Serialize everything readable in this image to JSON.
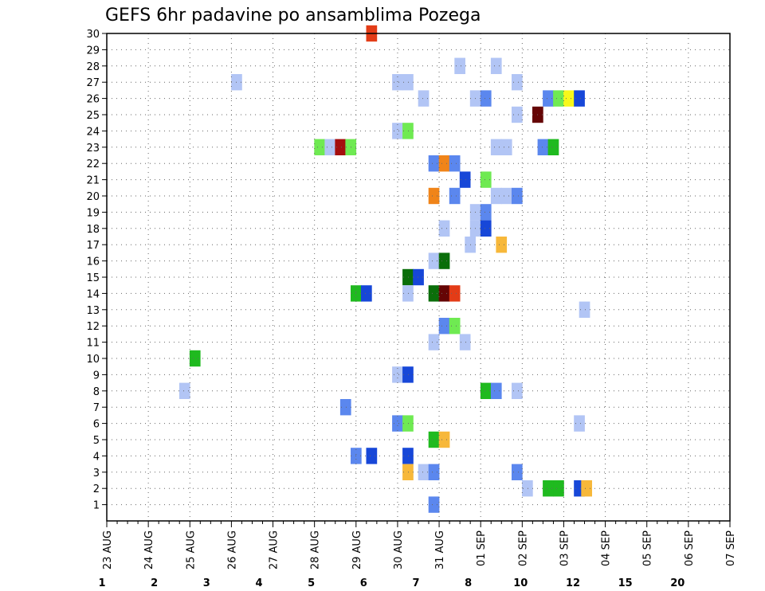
{
  "chart_data": {
    "type": "heatmap",
    "title": "GEFS 6hr padavine po ansamblima Pozega",
    "xlabel": "",
    "ylabel": "",
    "x_start": "23 AUG",
    "x_step": "6 hours",
    "x_ticks": [
      "23 AUG",
      "24 AUG",
      "25 AUG",
      "26 AUG",
      "27 AUG",
      "28 AUG",
      "29 AUG",
      "30 AUG",
      "31 AUG",
      "01 SEP",
      "02 SEP",
      "03 SEP",
      "04 SEP",
      "05 SEP",
      "06 SEP",
      "07 SEP"
    ],
    "y_ticks": [
      1,
      2,
      3,
      4,
      5,
      6,
      7,
      8,
      9,
      10,
      11,
      12,
      13,
      14,
      15,
      16,
      17,
      18,
      19,
      20,
      21,
      22,
      23,
      24,
      25,
      26,
      27,
      28,
      29,
      30
    ],
    "ylim": [
      0,
      30
    ],
    "grid": true,
    "legend": {
      "position": "bottom",
      "boundaries": [
        "1",
        "2",
        "3",
        "4",
        "5",
        "6",
        "7",
        "8",
        "10",
        "12",
        "15",
        "20"
      ],
      "colors": [
        "#b2c5f5",
        "#5b87ee",
        "#1747d8",
        "#6fea52",
        "#1fba1f",
        "#0a6e0a",
        "#f8f81a",
        "#f7b83a",
        "#f08419",
        "#e33c17",
        "#a50e0e",
        "#650505"
      ]
    },
    "cells": [
      {
        "t": 25.5,
        "m": 30,
        "c": 9
      },
      {
        "t": 34,
        "m": 28,
        "c": 0
      },
      {
        "t": 37.5,
        "m": 28,
        "c": 0
      },
      {
        "t": 12.5,
        "m": 27,
        "c": 0
      },
      {
        "t": 28,
        "m": 27,
        "c": 0
      },
      {
        "t": 29,
        "m": 27,
        "c": 0
      },
      {
        "t": 39.5,
        "m": 27,
        "c": 0
      },
      {
        "t": 30.5,
        "m": 26,
        "c": 0
      },
      {
        "t": 35.5,
        "m": 26,
        "c": 0
      },
      {
        "t": 36.5,
        "m": 26,
        "c": 1
      },
      {
        "t": 42.5,
        "m": 26,
        "c": 1
      },
      {
        "t": 43.5,
        "m": 26,
        "c": 3
      },
      {
        "t": 44.5,
        "m": 26,
        "c": 6
      },
      {
        "t": 45.5,
        "m": 26,
        "c": 2
      },
      {
        "t": 39.5,
        "m": 25,
        "c": 0
      },
      {
        "t": 41.5,
        "m": 25,
        "c": 11
      },
      {
        "t": 28,
        "m": 24,
        "c": 0
      },
      {
        "t": 29,
        "m": 24,
        "c": 3
      },
      {
        "t": 20.5,
        "m": 23,
        "c": 3
      },
      {
        "t": 21.5,
        "m": 23,
        "c": 0
      },
      {
        "t": 22.5,
        "m": 23,
        "c": 10
      },
      {
        "t": 23.5,
        "m": 23,
        "c": 3
      },
      {
        "t": 37.5,
        "m": 23,
        "c": 0
      },
      {
        "t": 38.5,
        "m": 23,
        "c": 0
      },
      {
        "t": 42,
        "m": 23,
        "c": 1
      },
      {
        "t": 43,
        "m": 23,
        "c": 4
      },
      {
        "t": 31.5,
        "m": 22,
        "c": 1
      },
      {
        "t": 32.5,
        "m": 22,
        "c": 8
      },
      {
        "t": 33.5,
        "m": 22,
        "c": 1
      },
      {
        "t": 34.5,
        "m": 21,
        "c": 2
      },
      {
        "t": 36.5,
        "m": 21,
        "c": 3
      },
      {
        "t": 31.5,
        "m": 20,
        "c": 8
      },
      {
        "t": 33.5,
        "m": 20,
        "c": 1
      },
      {
        "t": 37.5,
        "m": 20,
        "c": 0
      },
      {
        "t": 38.5,
        "m": 20,
        "c": 0
      },
      {
        "t": 39.5,
        "m": 20,
        "c": 1
      },
      {
        "t": 35.5,
        "m": 19,
        "c": 0
      },
      {
        "t": 36.5,
        "m": 19,
        "c": 1
      },
      {
        "t": 32.5,
        "m": 18,
        "c": 0
      },
      {
        "t": 35.5,
        "m": 18,
        "c": 0
      },
      {
        "t": 36.5,
        "m": 18,
        "c": 2
      },
      {
        "t": 35,
        "m": 17,
        "c": 0
      },
      {
        "t": 38,
        "m": 17,
        "c": 7
      },
      {
        "t": 31.5,
        "m": 16,
        "c": 0
      },
      {
        "t": 32.5,
        "m": 16,
        "c": 5
      },
      {
        "t": 29,
        "m": 15,
        "c": 5
      },
      {
        "t": 30,
        "m": 15,
        "c": 2
      },
      {
        "t": 29,
        "m": 14,
        "c": 0
      },
      {
        "t": 31.5,
        "m": 14,
        "c": 5
      },
      {
        "t": 32.5,
        "m": 14,
        "c": 11
      },
      {
        "t": 33.5,
        "m": 14,
        "c": 9
      },
      {
        "t": 24,
        "m": 14,
        "c": 4
      },
      {
        "t": 25,
        "m": 14,
        "c": 2
      },
      {
        "t": 46,
        "m": 13,
        "c": 0
      },
      {
        "t": 32.5,
        "m": 12,
        "c": 1
      },
      {
        "t": 33.5,
        "m": 12,
        "c": 3
      },
      {
        "t": 31.5,
        "m": 11,
        "c": 0
      },
      {
        "t": 34.5,
        "m": 11,
        "c": 0
      },
      {
        "t": 8.5,
        "m": 10,
        "c": 4
      },
      {
        "t": 28,
        "m": 9,
        "c": 0
      },
      {
        "t": 29,
        "m": 9,
        "c": 2
      },
      {
        "t": 7.5,
        "m": 8,
        "c": 0
      },
      {
        "t": 36.5,
        "m": 8,
        "c": 4
      },
      {
        "t": 37.5,
        "m": 8,
        "c": 1
      },
      {
        "t": 39.5,
        "m": 8,
        "c": 0
      },
      {
        "t": 23,
        "m": 7,
        "c": 1
      },
      {
        "t": 28,
        "m": 6,
        "c": 1
      },
      {
        "t": 29,
        "m": 6,
        "c": 3
      },
      {
        "t": 45.5,
        "m": 6,
        "c": 0
      },
      {
        "t": 31.5,
        "m": 5,
        "c": 4
      },
      {
        "t": 32.5,
        "m": 5,
        "c": 7
      },
      {
        "t": 29,
        "m": 4,
        "c": 2
      },
      {
        "t": 24,
        "m": 4,
        "c": 1
      },
      {
        "t": 25.5,
        "m": 4,
        "c": 2
      },
      {
        "t": 29,
        "m": 3,
        "c": 7
      },
      {
        "t": 30.5,
        "m": 3,
        "c": 0
      },
      {
        "t": 31.5,
        "m": 3,
        "c": 1
      },
      {
        "t": 39.5,
        "m": 3,
        "c": 1
      },
      {
        "t": 40.5,
        "m": 2,
        "c": 0
      },
      {
        "t": 42.5,
        "m": 2,
        "c": 4
      },
      {
        "t": 43.5,
        "m": 2,
        "c": 4
      },
      {
        "t": 45.5,
        "m": 2,
        "c": 2
      },
      {
        "t": 46.2,
        "m": 2,
        "c": 7
      },
      {
        "t": 31.5,
        "m": 1,
        "c": 1
      }
    ]
  }
}
